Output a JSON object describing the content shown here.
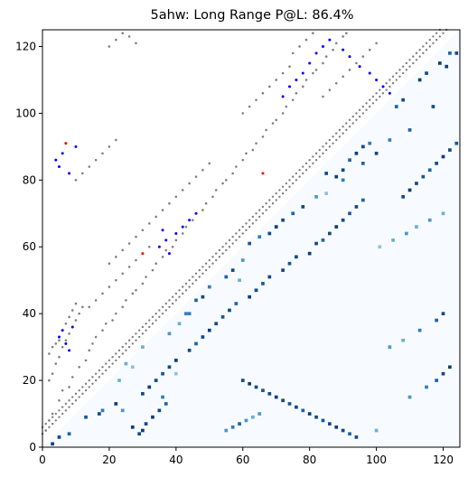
{
  "chart_data": {
    "type": "heatmap",
    "title": "5ahw: Long Range P@L: 86.4%",
    "xlabel": "",
    "ylabel": "",
    "xlim": [
      0,
      125
    ],
    "ylim": [
      0,
      125
    ],
    "xticks": [
      0,
      20,
      40,
      60,
      80,
      100,
      120
    ],
    "yticks": [
      0,
      20,
      40,
      60,
      80,
      100,
      120
    ],
    "grid": false,
    "legend": "none",
    "lower_triangle": "predicted contact probability map (white to dark blue)",
    "upper_triangle": "contact markers (grey = true contacts, blue = correct predictions, red = incorrect predictions)",
    "colors": {
      "true_contact": "#808080",
      "correct_prediction": "#0000ff",
      "incorrect_prediction": "#ff0000",
      "heat_low": "#f7fbff",
      "heat_high": "#08306b"
    },
    "heatmap_spots": [
      [
        3,
        1,
        0.95
      ],
      [
        5,
        3,
        0.9
      ],
      [
        8,
        4,
        0.8
      ],
      [
        13,
        9,
        0.85
      ],
      [
        17,
        10,
        0.9
      ],
      [
        18,
        11,
        0.7
      ],
      [
        22,
        13,
        0.95
      ],
      [
        24,
        11,
        0.6
      ],
      [
        27,
        6,
        0.95
      ],
      [
        29,
        4,
        0.9
      ],
      [
        30,
        5,
        0.95
      ],
      [
        31,
        7,
        0.9
      ],
      [
        33,
        9,
        0.95
      ],
      [
        35,
        11,
        0.9
      ],
      [
        37,
        13,
        0.8
      ],
      [
        36,
        15,
        0.7
      ],
      [
        25,
        25,
        0.5
      ],
      [
        30,
        30,
        0.5
      ],
      [
        40,
        22,
        0.4
      ],
      [
        43,
        40,
        0.7
      ],
      [
        46,
        44,
        0.8
      ],
      [
        48,
        45,
        0.9
      ],
      [
        50,
        48,
        0.7
      ],
      [
        55,
        51,
        0.8
      ],
      [
        57,
        53,
        0.9
      ],
      [
        60,
        56,
        0.6
      ],
      [
        62,
        61,
        0.85
      ],
      [
        65,
        63,
        0.7
      ],
      [
        68,
        64,
        0.9
      ],
      [
        70,
        66,
        0.95
      ],
      [
        72,
        68,
        0.9
      ],
      [
        75,
        70,
        0.8
      ],
      [
        78,
        72,
        0.9
      ],
      [
        82,
        75,
        0.6
      ],
      [
        85,
        82,
        0.9
      ],
      [
        90,
        80,
        0.7
      ],
      [
        96,
        85,
        0.8
      ],
      [
        100,
        88,
        0.9
      ],
      [
        104,
        92,
        0.7
      ],
      [
        110,
        95,
        0.8
      ],
      [
        117,
        102,
        0.9
      ],
      [
        121,
        114,
        0.95
      ],
      [
        124,
        118,
        0.9
      ],
      [
        41,
        37,
        0.5
      ],
      [
        38,
        34,
        0.6
      ],
      [
        44,
        40,
        0.7
      ],
      [
        23,
        20,
        0.5
      ],
      [
        27,
        24,
        0.4
      ],
      [
        59,
        50,
        0.5
      ],
      [
        85,
        76,
        0.4
      ],
      [
        88,
        81,
        0.95
      ],
      [
        90,
        83,
        0.9
      ],
      [
        92,
        86,
        0.8
      ],
      [
        94,
        88,
        0.95
      ],
      [
        96,
        90,
        0.9
      ],
      [
        98,
        91,
        0.7
      ],
      [
        106,
        102,
        0.8
      ],
      [
        108,
        104,
        0.9
      ],
      [
        113,
        110,
        0.95
      ],
      [
        115,
        112,
        0.9
      ],
      [
        119,
        115,
        0.95
      ],
      [
        122,
        118,
        0.8
      ],
      [
        30,
        16,
        0.9
      ],
      [
        32,
        18,
        0.95
      ],
      [
        34,
        20,
        0.9
      ],
      [
        36,
        22,
        0.85
      ],
      [
        38,
        24,
        0.9
      ],
      [
        40,
        26,
        0.95
      ],
      [
        44,
        29,
        0.9
      ],
      [
        46,
        31,
        0.8
      ],
      [
        48,
        33,
        0.9
      ],
      [
        50,
        35,
        0.95
      ],
      [
        52,
        37,
        0.9
      ],
      [
        54,
        39,
        0.85
      ],
      [
        56,
        41,
        0.9
      ],
      [
        58,
        43,
        0.8
      ],
      [
        62,
        45,
        0.95
      ],
      [
        64,
        47,
        0.9
      ],
      [
        66,
        49,
        0.85
      ],
      [
        68,
        51,
        0.9
      ],
      [
        72,
        53,
        0.9
      ],
      [
        74,
        55,
        0.85
      ],
      [
        76,
        57,
        0.9
      ],
      [
        80,
        58,
        0.95
      ],
      [
        82,
        61,
        0.9
      ],
      [
        84,
        62,
        0.8
      ],
      [
        86,
        64,
        0.9
      ],
      [
        88,
        66,
        0.95
      ],
      [
        90,
        68,
        0.9
      ],
      [
        92,
        70,
        0.85
      ],
      [
        94,
        72,
        0.9
      ],
      [
        96,
        74,
        0.8
      ],
      [
        60,
        20,
        0.9
      ],
      [
        62,
        19,
        0.95
      ],
      [
        64,
        18,
        0.9
      ],
      [
        66,
        17,
        0.85
      ],
      [
        68,
        16,
        0.9
      ],
      [
        70,
        15,
        0.95
      ],
      [
        72,
        14,
        0.9
      ],
      [
        74,
        13,
        0.85
      ],
      [
        76,
        12,
        0.9
      ],
      [
        78,
        11,
        0.8
      ],
      [
        80,
        10,
        0.95
      ],
      [
        82,
        9,
        0.9
      ],
      [
        84,
        8,
        0.85
      ],
      [
        86,
        7,
        0.9
      ],
      [
        88,
        6,
        0.95
      ],
      [
        90,
        5,
        0.9
      ],
      [
        92,
        4,
        0.8
      ],
      [
        94,
        3,
        0.9
      ],
      [
        55,
        5,
        0.6
      ],
      [
        57,
        6,
        0.7
      ],
      [
        59,
        7,
        0.8
      ],
      [
        61,
        8,
        0.6
      ],
      [
        63,
        9,
        0.5
      ],
      [
        65,
        10,
        0.6
      ],
      [
        100,
        5,
        0.5
      ],
      [
        110,
        15,
        0.6
      ],
      [
        115,
        18,
        0.7
      ],
      [
        118,
        20,
        0.8
      ],
      [
        120,
        22,
        0.9
      ],
      [
        122,
        24,
        0.95
      ],
      [
        104,
        30,
        0.6
      ],
      [
        108,
        32,
        0.5
      ],
      [
        113,
        35,
        0.7
      ],
      [
        118,
        38,
        0.8
      ],
      [
        120,
        40,
        0.9
      ],
      [
        108,
        75,
        0.9
      ],
      [
        110,
        77,
        0.95
      ],
      [
        112,
        79,
        0.9
      ],
      [
        114,
        81,
        0.85
      ],
      [
        116,
        83,
        0.8
      ],
      [
        118,
        85,
        0.9
      ],
      [
        120,
        87,
        0.95
      ],
      [
        122,
        89,
        0.9
      ],
      [
        124,
        91,
        0.85
      ],
      [
        101,
        60,
        0.4
      ],
      [
        105,
        62,
        0.5
      ],
      [
        109,
        64,
        0.6
      ],
      [
        112,
        66,
        0.5
      ],
      [
        116,
        68,
        0.6
      ],
      [
        120,
        70,
        0.5
      ]
    ],
    "true_contacts": [
      [
        1,
        5
      ],
      [
        2,
        8
      ],
      [
        3,
        10
      ],
      [
        5,
        14
      ],
      [
        6,
        17
      ],
      [
        8,
        18
      ],
      [
        9,
        21
      ],
      [
        11,
        24
      ],
      [
        13,
        26
      ],
      [
        14,
        29
      ],
      [
        15,
        31
      ],
      [
        16,
        33
      ],
      [
        18,
        35
      ],
      [
        19,
        37
      ],
      [
        21,
        38
      ],
      [
        22,
        40
      ],
      [
        24,
        42
      ],
      [
        25,
        44
      ],
      [
        27,
        46
      ],
      [
        28,
        47
      ],
      [
        30,
        49
      ],
      [
        31,
        51
      ],
      [
        33,
        53
      ],
      [
        34,
        55
      ],
      [
        36,
        57
      ],
      [
        37,
        59
      ],
      [
        39,
        60
      ],
      [
        40,
        62
      ],
      [
        42,
        64
      ],
      [
        43,
        66
      ],
      [
        45,
        68
      ],
      [
        46,
        70
      ],
      [
        48,
        71
      ],
      [
        49,
        73
      ],
      [
        51,
        75
      ],
      [
        52,
        77
      ],
      [
        54,
        79
      ],
      [
        55,
        80
      ],
      [
        57,
        82
      ],
      [
        58,
        84
      ],
      [
        60,
        86
      ],
      [
        61,
        88
      ],
      [
        63,
        89
      ],
      [
        64,
        91
      ],
      [
        66,
        93
      ],
      [
        67,
        95
      ],
      [
        69,
        97
      ],
      [
        70,
        98
      ],
      [
        72,
        100
      ],
      [
        73,
        102
      ],
      [
        75,
        104
      ],
      [
        76,
        106
      ],
      [
        78,
        108
      ],
      [
        79,
        110
      ],
      [
        81,
        112
      ],
      [
        82,
        113
      ],
      [
        84,
        115
      ],
      [
        85,
        117
      ],
      [
        87,
        119
      ],
      [
        88,
        121
      ],
      [
        90,
        123
      ],
      [
        91,
        124
      ],
      [
        2,
        20
      ],
      [
        3,
        22
      ],
      [
        4,
        25
      ],
      [
        5,
        27
      ],
      [
        6,
        30
      ],
      [
        7,
        32
      ],
      [
        8,
        34
      ],
      [
        9,
        36
      ],
      [
        10,
        38
      ],
      [
        11,
        40
      ],
      [
        12,
        42
      ],
      [
        2,
        28
      ],
      [
        3,
        30
      ],
      [
        4,
        31
      ],
      [
        5,
        32
      ],
      [
        6,
        35
      ],
      [
        7,
        37
      ],
      [
        8,
        39
      ],
      [
        9,
        41
      ],
      [
        10,
        43
      ],
      [
        14,
        42
      ],
      [
        16,
        44
      ],
      [
        18,
        46
      ],
      [
        20,
        48
      ],
      [
        22,
        50
      ],
      [
        24,
        52
      ],
      [
        26,
        54
      ],
      [
        28,
        56
      ],
      [
        30,
        58
      ],
      [
        32,
        60
      ],
      [
        20,
        55
      ],
      [
        22,
        57
      ],
      [
        24,
        59
      ],
      [
        26,
        61
      ],
      [
        28,
        63
      ],
      [
        30,
        65
      ],
      [
        32,
        67
      ],
      [
        34,
        69
      ],
      [
        36,
        71
      ],
      [
        38,
        73
      ],
      [
        40,
        75
      ],
      [
        42,
        77
      ],
      [
        44,
        79
      ],
      [
        46,
        81
      ],
      [
        48,
        83
      ],
      [
        50,
        85
      ],
      [
        10,
        80
      ],
      [
        12,
        82
      ],
      [
        14,
        84
      ],
      [
        16,
        86
      ],
      [
        18,
        88
      ],
      [
        20,
        90
      ],
      [
        22,
        92
      ],
      [
        60,
        100
      ],
      [
        62,
        102
      ],
      [
        64,
        104
      ],
      [
        66,
        106
      ],
      [
        68,
        108
      ],
      [
        70,
        110
      ],
      [
        72,
        112
      ],
      [
        74,
        114
      ],
      [
        75,
        118
      ],
      [
        77,
        120
      ],
      [
        79,
        122
      ],
      [
        81,
        124
      ],
      [
        84,
        105
      ],
      [
        86,
        107
      ],
      [
        88,
        109
      ],
      [
        90,
        111
      ],
      [
        92,
        113
      ],
      [
        94,
        115
      ],
      [
        96,
        117
      ],
      [
        98,
        119
      ],
      [
        100,
        121
      ],
      [
        20,
        120
      ],
      [
        22,
        122
      ],
      [
        24,
        124
      ],
      [
        26,
        123
      ],
      [
        28,
        121
      ]
    ],
    "correct_predictions": [
      [
        5,
        33
      ],
      [
        6,
        35
      ],
      [
        7,
        31
      ],
      [
        8,
        29
      ],
      [
        9,
        36
      ],
      [
        4,
        86
      ],
      [
        5,
        84
      ],
      [
        6,
        88
      ],
      [
        8,
        82
      ],
      [
        10,
        90
      ],
      [
        35,
        60
      ],
      [
        37,
        62
      ],
      [
        38,
        58
      ],
      [
        40,
        64
      ],
      [
        36,
        65
      ],
      [
        42,
        66
      ],
      [
        44,
        68
      ],
      [
        46,
        70
      ],
      [
        72,
        105
      ],
      [
        74,
        108
      ],
      [
        76,
        110
      ],
      [
        78,
        112
      ],
      [
        80,
        115
      ],
      [
        82,
        118
      ],
      [
        84,
        120
      ],
      [
        86,
        122
      ],
      [
        90,
        119
      ],
      [
        92,
        117
      ],
      [
        95,
        114
      ],
      [
        98,
        112
      ],
      [
        100,
        110
      ],
      [
        102,
        108
      ],
      [
        104,
        106
      ]
    ],
    "incorrect_predictions": [
      [
        30,
        58
      ],
      [
        66,
        82
      ],
      [
        7,
        91
      ]
    ]
  }
}
